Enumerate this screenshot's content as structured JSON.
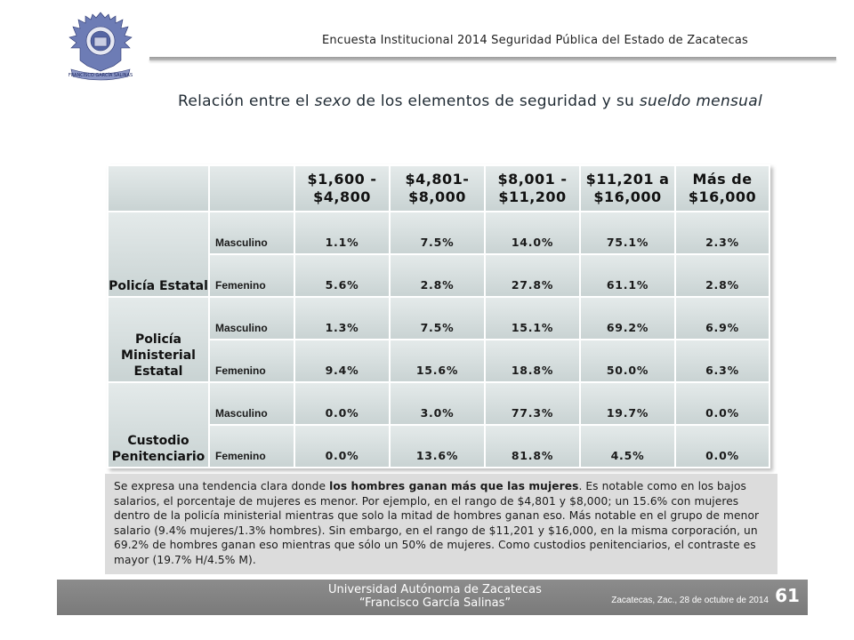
{
  "logo": {
    "icon": "university-eagle-crest-icon",
    "motto": "FRANCISCO GARCÍA SALINAS"
  },
  "header": {
    "title": "Encuesta Institucional 2014 Seguridad Pública del Estado de Zacatecas"
  },
  "slide": {
    "title_pre": "Relación entre el ",
    "title_em1": "sexo",
    "title_mid": " de los elementos de seguridad y su ",
    "title_em2": "sueldo mensual"
  },
  "table": {
    "headers": [
      "$1,600 - $4,800",
      "$4,801- $8,000",
      "$8,001 - $11,200",
      "$11,201 a $16,000",
      "Más de $16,000"
    ],
    "groups": [
      {
        "name": "Policía Estatal",
        "rows": [
          {
            "sex": "Masculino",
            "values": [
              "1.1%",
              "7.5%",
              "14.0%",
              "75.1%",
              "2.3%"
            ]
          },
          {
            "sex": "Femenino",
            "values": [
              "5.6%",
              "2.8%",
              "27.8%",
              "61.1%",
              "2.8%"
            ]
          }
        ]
      },
      {
        "name": "Policía Ministerial Estatal",
        "rows": [
          {
            "sex": "Masculino",
            "values": [
              "1.3%",
              "7.5%",
              "15.1%",
              "69.2%",
              "6.9%"
            ]
          },
          {
            "sex": "Femenino",
            "values": [
              "9.4%",
              "15.6%",
              "18.8%",
              "50.0%",
              "6.3%"
            ]
          }
        ]
      },
      {
        "name": "Custodio Penitenciario",
        "rows": [
          {
            "sex": "Masculino",
            "values": [
              "0.0%",
              "3.0%",
              "77.3%",
              "19.7%",
              "0.0%"
            ]
          },
          {
            "sex": "Femenino",
            "values": [
              "0.0%",
              "13.6%",
              "81.8%",
              "4.5%",
              "0.0%"
            ]
          }
        ]
      }
    ]
  },
  "note": {
    "p1": "Se expresa una tendencia clara donde ",
    "bold": "los hombres ganan más que las mujeres",
    "p2": ".  Es notable como en los bajos salarios, el porcentaje de mujeres es menor.  Por ejemplo, en el rango de $4,801 y $8,000; un 15.6% con mujeres dentro de la policía ministerial mientras que solo la mitad de hombres ganan eso.    Más notable en el grupo de menor salario (9.4% mujeres/1.3% hombres). Sin embargo, en el rango de $11,201 y $16,000, en la misma corporación, un 69.2% de hombres ganan eso mientras que sólo un 50% de mujeres.  Como custodios penitenciarios, el contraste es mayor (19.7% H/4.5% M)."
  },
  "footer": {
    "university": "Universidad Autónoma de Zacatecas",
    "university_sub": "“Francisco García Salinas”",
    "date": "Zacatecas, Zac., 28 de octubre de 2014",
    "page": "61"
  },
  "colors": {
    "footer_bg": "#858585",
    "table_cell": "#d6dede",
    "note_bg": "#dcdcdc"
  }
}
